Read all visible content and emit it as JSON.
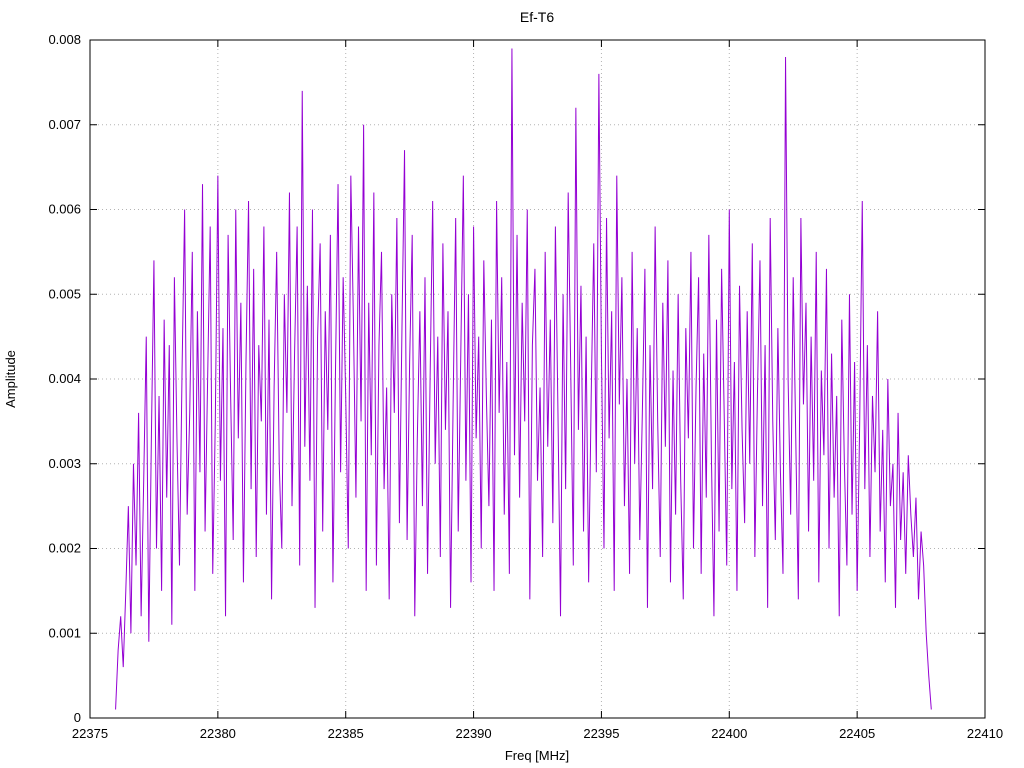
{
  "chart": {
    "title": "Ef-T6",
    "xlabel": "Freq [MHz]",
    "ylabel": "Amplitude"
  },
  "chart_data": {
    "type": "line",
    "title": "Ef-T6",
    "xlabel": "Freq [MHz]",
    "ylabel": "Amplitude",
    "xlim": [
      22375,
      22410
    ],
    "ylim": [
      0,
      0.008
    ],
    "grid": true,
    "legend": "none",
    "line_color": "#9400d3",
    "x_ticks": [
      22375,
      22380,
      22385,
      22390,
      22395,
      22400,
      22405,
      22410
    ],
    "x_tick_labels": [
      "22375",
      "22380",
      "22385",
      "22390",
      "22395",
      "22400",
      "22405",
      "22410"
    ],
    "y_ticks": [
      0,
      0.001,
      0.002,
      0.003,
      0.004,
      0.005,
      0.006,
      0.007,
      0.008
    ],
    "y_tick_labels": [
      "0",
      "0.001",
      "0.002",
      "0.003",
      "0.004",
      "0.005",
      "0.006",
      "0.007",
      "0.008"
    ],
    "x_start": 22376.0,
    "x_step": 0.1,
    "y_unit": 0.0001,
    "values": [
      1,
      8,
      12,
      6,
      15,
      25,
      10,
      30,
      18,
      36,
      12,
      28,
      45,
      9,
      33,
      54,
      20,
      38,
      15,
      47,
      26,
      44,
      11,
      52,
      33,
      18,
      41,
      60,
      24,
      36,
      55,
      15,
      48,
      29,
      63,
      22,
      40,
      58,
      17,
      35,
      64,
      28,
      46,
      12,
      57,
      38,
      21,
      60,
      33,
      49,
      16,
      42,
      61,
      27,
      53,
      19,
      44,
      35,
      58,
      24,
      47,
      14,
      39,
      55,
      30,
      20,
      50,
      36,
      62,
      25,
      43,
      58,
      18,
      74,
      32,
      51,
      28,
      60,
      13,
      45,
      56,
      22,
      48,
      34,
      57,
      16,
      41,
      63,
      29,
      52,
      38,
      20,
      64,
      47,
      26,
      58,
      35,
      70,
      15,
      49,
      31,
      62,
      18,
      44,
      55,
      27,
      39,
      14,
      50,
      36,
      59,
      23,
      46,
      67,
      21,
      42,
      57,
      12,
      33,
      48,
      25,
      52,
      17,
      40,
      61,
      30,
      45,
      19,
      56,
      34,
      48,
      13,
      37,
      59,
      22,
      43,
      64,
      28,
      50,
      16,
      58,
      33,
      45,
      20,
      54,
      38,
      25,
      47,
      15,
      61,
      36,
      52,
      24,
      42,
      17,
      79,
      31,
      57,
      26,
      49,
      35,
      60,
      14,
      44,
      53,
      28,
      39,
      19,
      55,
      32,
      47,
      23,
      58,
      36,
      12,
      50,
      27,
      62,
      41,
      18,
      72,
      34,
      51,
      22,
      45,
      16,
      38,
      56,
      29,
      76,
      43,
      20,
      59,
      33,
      48,
      15,
      64,
      37,
      52,
      25,
      40,
      17,
      55,
      30,
      46,
      21,
      36,
      53,
      13,
      44,
      27,
      58,
      35,
      19,
      49,
      32,
      54,
      16,
      41,
      24,
      50,
      28,
      14,
      46,
      33,
      55,
      20,
      39,
      52,
      17,
      43,
      26,
      57,
      31,
      12,
      47,
      22,
      53,
      36,
      18,
      60,
      27,
      42,
      15,
      51,
      34,
      23,
      48,
      30,
      56,
      19,
      38,
      54,
      25,
      44,
      13,
      59,
      35,
      21,
      46,
      29,
      17,
      78,
      40,
      24,
      52,
      33,
      14,
      59,
      37,
      49,
      22,
      45,
      28,
      55,
      16,
      41,
      31,
      53,
      20,
      43,
      26,
      38,
      12,
      47,
      30,
      18,
      50,
      24,
      42,
      15,
      35,
      61,
      27,
      44,
      19,
      38,
      29,
      48,
      22,
      34,
      16,
      40,
      25,
      30,
      13,
      36,
      21,
      29,
      17,
      31,
      24,
      19,
      26,
      14,
      22,
      18,
      10,
      5,
      1
    ]
  }
}
